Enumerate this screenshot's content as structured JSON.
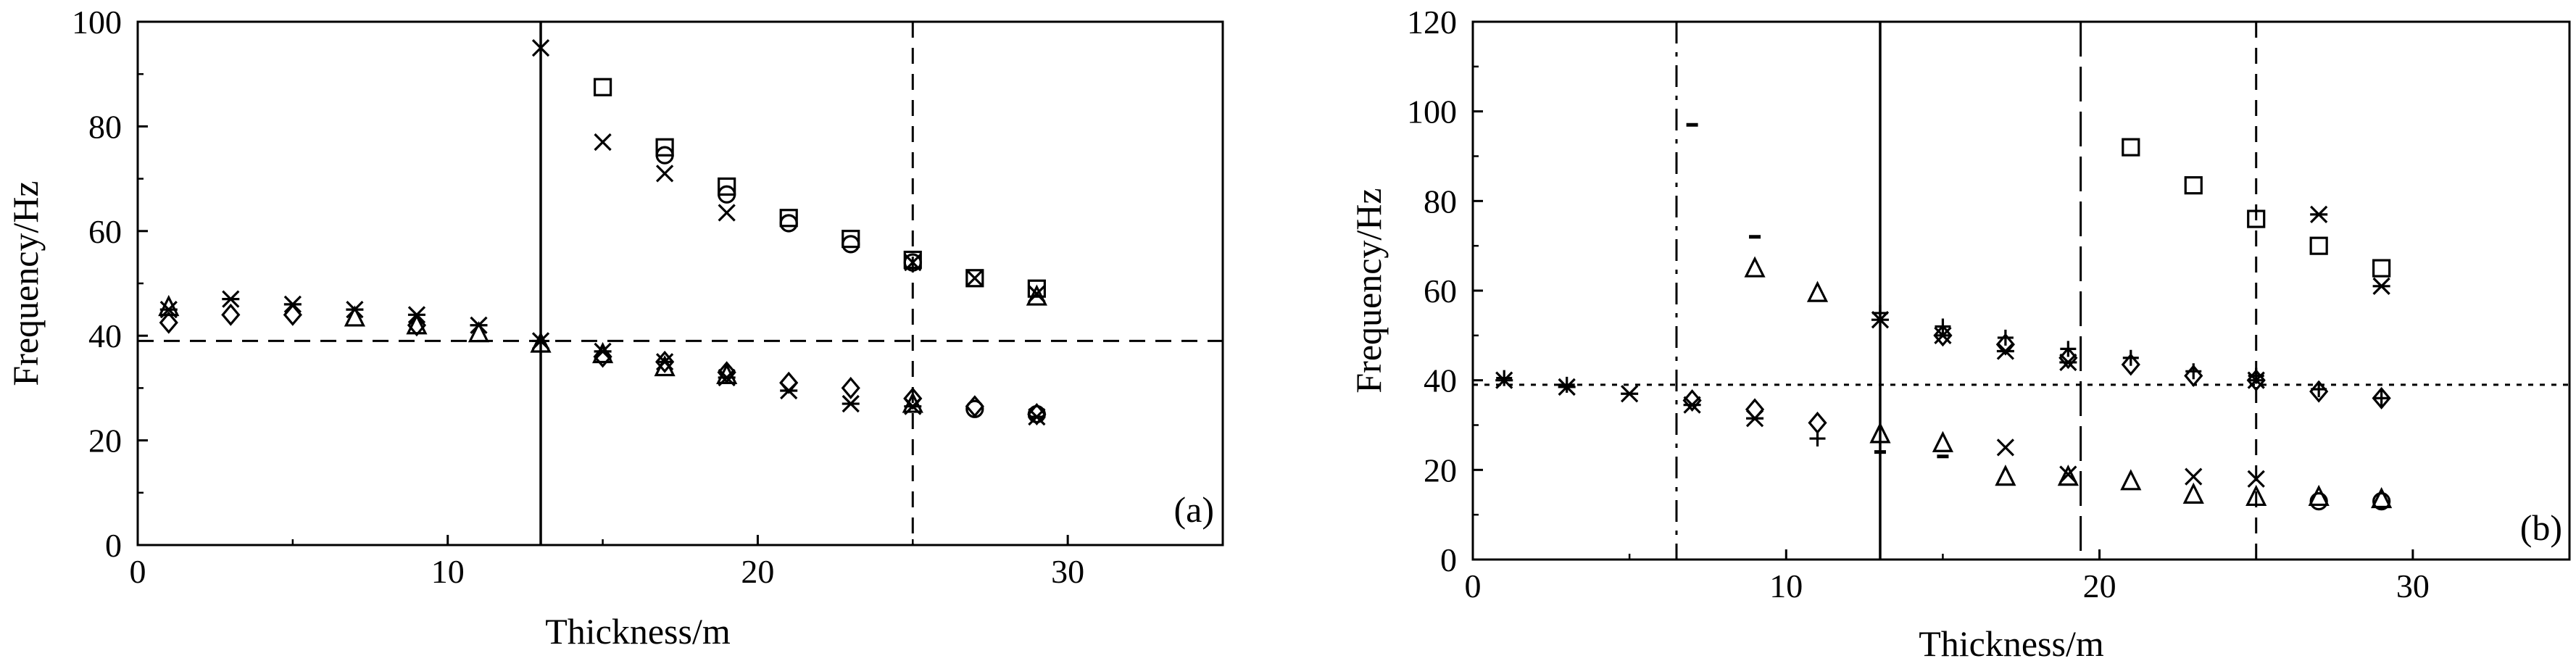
{
  "chart_data": [
    {
      "panel_label": "(a)",
      "type": "scatter",
      "xlabel": "Thickness/m",
      "ylabel": "Frequency/Hz",
      "xlim": [
        0,
        35
      ],
      "ylim": [
        0,
        100
      ],
      "xticks": [
        0,
        10,
        20,
        30
      ],
      "xtick_labels": [
        "0",
        "10",
        "20",
        "30"
      ],
      "yticks": [
        0,
        20,
        40,
        60,
        80,
        100
      ],
      "ytick_labels": [
        "0",
        "20",
        "40",
        "60",
        "80",
        "100"
      ],
      "grid": false,
      "reference_lines": [
        {
          "orientation": "horizontal",
          "value": 39,
          "style": "dashed"
        },
        {
          "orientation": "vertical",
          "value": 13,
          "style": "solid"
        },
        {
          "orientation": "vertical",
          "value": 25,
          "style": "dashed"
        }
      ],
      "series": [
        {
          "marker": "square",
          "points": [
            [
              15,
              87.5
            ],
            [
              17,
              76
            ],
            [
              19,
              68.5
            ],
            [
              21,
              62.5
            ],
            [
              23,
              58.5
            ],
            [
              25,
              54.5
            ],
            [
              27,
              51
            ],
            [
              29,
              49
            ]
          ]
        },
        {
          "marker": "circle",
          "points": [
            [
              17,
              74.5
            ],
            [
              19,
              67
            ],
            [
              21,
              61.5
            ],
            [
              23,
              57.5
            ],
            [
              25,
              54
            ],
            [
              27,
              26
            ],
            [
              29,
              25
            ]
          ]
        },
        {
          "marker": "x",
          "points": [
            [
              13,
              95
            ],
            [
              15,
              77
            ],
            [
              17,
              71
            ],
            [
              19,
              63.5
            ],
            [
              25,
              54
            ],
            [
              27,
              51
            ],
            [
              29,
              48
            ]
          ]
        },
        {
          "marker": "asterisk",
          "points": [
            [
              1,
              45
            ],
            [
              3,
              47
            ],
            [
              5,
              46
            ],
            [
              7,
              45
            ],
            [
              9,
              44
            ],
            [
              11,
              42
            ],
            [
              13,
              39
            ],
            [
              15,
              37
            ],
            [
              17,
              35
            ],
            [
              19,
              32
            ],
            [
              21,
              29.5
            ],
            [
              23,
              27
            ],
            [
              25,
              26.5
            ],
            [
              29,
              24.5
            ]
          ]
        },
        {
          "marker": "diamond",
          "points": [
            [
              1,
              42.5
            ],
            [
              3,
              44
            ],
            [
              5,
              44
            ],
            [
              9,
              42
            ],
            [
              15,
              36
            ],
            [
              17,
              35
            ],
            [
              19,
              33
            ],
            [
              21,
              31
            ],
            [
              23,
              30
            ],
            [
              25,
              28
            ],
            [
              27,
              26.5
            ],
            [
              29,
              25
            ]
          ]
        },
        {
          "marker": "triangle",
          "points": [
            [
              1,
              45.5
            ],
            [
              7,
              43.5
            ],
            [
              9,
              42
            ],
            [
              11,
              40.5
            ],
            [
              13,
              38.5
            ],
            [
              15,
              36.5
            ],
            [
              17,
              34
            ],
            [
              19,
              32.5
            ],
            [
              25,
              27
            ],
            [
              29,
              47.5
            ]
          ]
        }
      ]
    },
    {
      "panel_label": "(b)",
      "type": "scatter",
      "xlabel": "Thickness/m",
      "ylabel": "Frequency/Hz",
      "xlim": [
        0,
        35
      ],
      "ylim": [
        0,
        120
      ],
      "xticks": [
        0,
        10,
        20,
        30
      ],
      "xtick_labels": [
        "0",
        "10",
        "20",
        "30"
      ],
      "yticks": [
        0,
        20,
        40,
        60,
        80,
        100,
        120
      ],
      "ytick_labels": [
        "0",
        "20",
        "40",
        "60",
        "80",
        "100",
        "120"
      ],
      "grid": false,
      "reference_lines": [
        {
          "orientation": "horizontal",
          "value": 39,
          "style": "dotted"
        },
        {
          "orientation": "vertical",
          "value": 6.5,
          "style": "dash-dot"
        },
        {
          "orientation": "vertical",
          "value": 13,
          "style": "solid"
        },
        {
          "orientation": "vertical",
          "value": 19.4,
          "style": "long-dash"
        },
        {
          "orientation": "vertical",
          "value": 25,
          "style": "dashed"
        }
      ],
      "series": [
        {
          "marker": "dash",
          "points": [
            [
              7,
              97
            ],
            [
              9,
              72
            ],
            [
              13,
              24
            ],
            [
              15,
              23
            ]
          ]
        },
        {
          "marker": "square",
          "points": [
            [
              21,
              92
            ],
            [
              23,
              83.5
            ],
            [
              25,
              76
            ],
            [
              27,
              70
            ],
            [
              29,
              65
            ]
          ]
        },
        {
          "marker": "asterisk",
          "points": [
            [
              1,
              40
            ],
            [
              3,
              38.5
            ],
            [
              5,
              37
            ],
            [
              7,
              34.5
            ],
            [
              9,
              31.5
            ],
            [
              13,
              53.5
            ],
            [
              15,
              50
            ],
            [
              17,
              46.5
            ],
            [
              19,
              44
            ],
            [
              25,
              40
            ],
            [
              27,
              77
            ],
            [
              29,
              61
            ]
          ]
        },
        {
          "marker": "plus",
          "points": [
            [
              1,
              40.5
            ],
            [
              3,
              39
            ],
            [
              11,
              27
            ],
            [
              13,
              55
            ],
            [
              15,
              52
            ],
            [
              17,
              49.5
            ],
            [
              19,
              47
            ],
            [
              21,
              45
            ],
            [
              23,
              42
            ],
            [
              25,
              41
            ],
            [
              27,
              38
            ],
            [
              29,
              36
            ]
          ]
        },
        {
          "marker": "diamond",
          "points": [
            [
              7,
              35.5
            ],
            [
              9,
              33.5
            ],
            [
              11,
              30.5
            ],
            [
              15,
              50
            ],
            [
              17,
              48
            ],
            [
              19,
              45
            ],
            [
              21,
              43.5
            ],
            [
              23,
              41
            ],
            [
              25,
              40
            ],
            [
              27,
              37.5
            ],
            [
              29,
              36
            ]
          ]
        },
        {
          "marker": "triangle",
          "points": [
            [
              9,
              65
            ],
            [
              11,
              59.5
            ],
            [
              13,
              28
            ],
            [
              15,
              26
            ],
            [
              17,
              18.5
            ],
            [
              19,
              18.5
            ],
            [
              21,
              17.5
            ],
            [
              23,
              14.5
            ],
            [
              25,
              14
            ],
            [
              27,
              14
            ],
            [
              29,
              13.5
            ]
          ]
        },
        {
          "marker": "circle",
          "points": [
            [
              27,
              13
            ],
            [
              29,
              13
            ]
          ]
        },
        {
          "marker": "x",
          "points": [
            [
              17,
              25
            ],
            [
              19,
              19
            ],
            [
              23,
              18.5
            ],
            [
              25,
              18
            ]
          ]
        }
      ]
    }
  ]
}
